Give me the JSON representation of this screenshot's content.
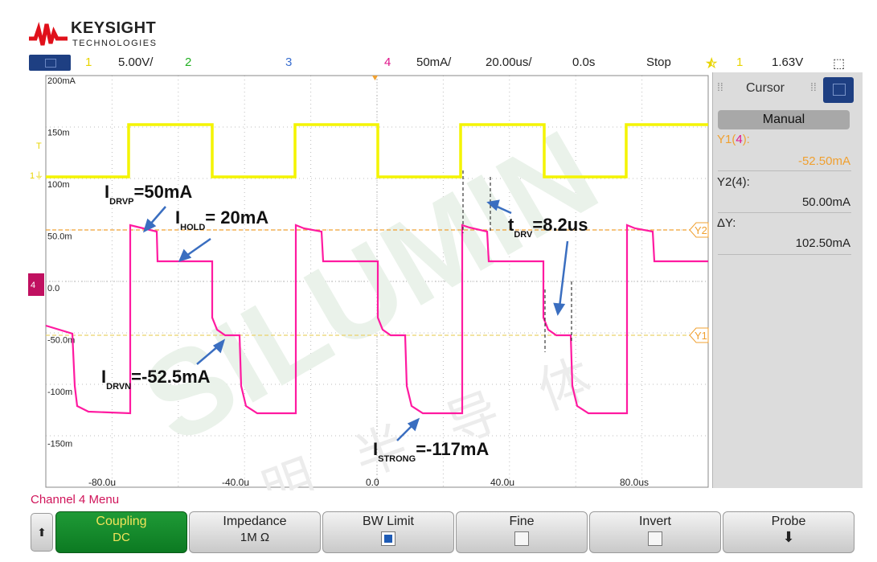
{
  "brand": {
    "name": "KEYSIGHT",
    "sub": "TECHNOLOGIES"
  },
  "status": {
    "ch1_num": "1",
    "ch1_scale": "5.00V/",
    "ch2_num": "2",
    "ch3_num": "3",
    "ch4_num": "4",
    "ch4_scale": "50mA/",
    "timebase": "20.00us/",
    "delay": "0.0s",
    "run_state": "Stop",
    "trigger_ch": "1",
    "trigger_level": "1.63V"
  },
  "scope": {
    "y_labels": [
      "200mA",
      "150m",
      "100m",
      "50.0m",
      "0.0",
      "-50.0m",
      "-100m",
      "-150m"
    ],
    "x_labels": [
      "-80.0u",
      "-40.0u",
      "0.0",
      "40.0u",
      "80.0us"
    ],
    "marker_y1": "Y1",
    "marker_y2": "Y2",
    "watermark_text": "数 明 半 导 体",
    "watermark_latin": "SILUMIN"
  },
  "annotations": {
    "idrvp_main": "I",
    "idrvp_sub": "DRVP",
    "idrvp_val": "=50mA",
    "ihold_main": "I",
    "ihold_sub": "HOLD",
    "ihold_val": "= 20mA",
    "tdrv_main": "t",
    "tdrv_sub": "DRV",
    "tdrv_val": "=8.2us",
    "idrvn_main": "I",
    "idrvn_sub": "DRVN",
    "idrvn_val": "=-52.5mA",
    "istrong_main": "I",
    "istrong_sub": "STRONG",
    "istrong_val": "=-117mA"
  },
  "cursor": {
    "title": "Cursor",
    "mode": "Manual",
    "y1_label_pre": "Y1(",
    "y1_label_ch": "4",
    "y1_label_post": "):",
    "y1_value": "-52.50mA",
    "y2_label": "Y2(4):",
    "y2_value": "50.00mA",
    "dy_label": "ΔY:",
    "dy_value": "102.50mA"
  },
  "menu": {
    "title": "Channel 4 Menu",
    "coupling_label": "Coupling",
    "coupling_value": "DC",
    "impedance_label": "Impedance",
    "impedance_value": "1M Ω",
    "bwlimit_label": "BW Limit",
    "fine_label": "Fine",
    "invert_label": "Invert",
    "probe_label": "Probe"
  },
  "colors": {
    "ch1": "#f4f400",
    "ch4": "#ff1aa0",
    "cursor_y1": "#f0a030",
    "accent": "#1e3f82"
  }
}
